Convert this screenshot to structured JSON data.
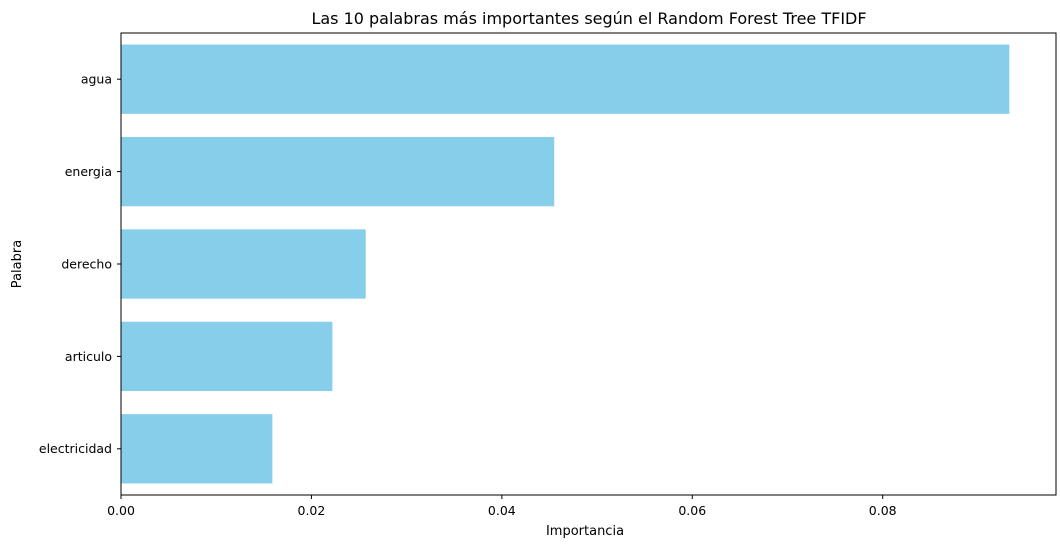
{
  "chart_data": {
    "type": "bar",
    "orientation": "horizontal",
    "title": "Las 10 palabras más importantes según el Random Forest Tree TFIDF",
    "xlabel": "Importancia",
    "ylabel": "Palabra",
    "categories": [
      "agua",
      "energia",
      "derecho",
      "articulo",
      "electricidad"
    ],
    "values": [
      0.0933,
      0.0455,
      0.0257,
      0.0222,
      0.0159
    ],
    "xlim": [
      0,
      0.0982
    ],
    "xticks": [
      "0.00",
      "0.02",
      "0.04",
      "0.06",
      "0.08"
    ],
    "bar_color": "#87CEEB",
    "grid": false
  }
}
